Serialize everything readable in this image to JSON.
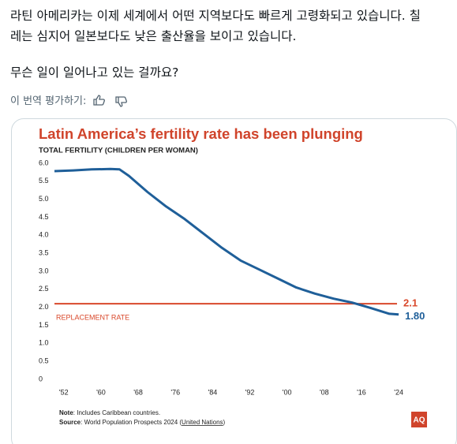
{
  "post": {
    "lines": [
      "라틴 아메리카는 이제 세계에서 어떤 지역보다도 빠르게 고령화되고 있습니다. 칠",
      "레는 심지어 일본보다도 낮은 출산율을 보이고 있습니다.",
      "무슨 일이 일어나고 있는 걸까요?"
    ],
    "rate_translation": "이 번역 평가하기:"
  },
  "chart_data": {
    "type": "line",
    "title": "Latin America’s fertility rate has been plunging",
    "subtitle": "TOTAL FERTILITY (CHILDREN PER WOMAN)",
    "x": [
      1950,
      1954,
      1958,
      1962,
      1964,
      1966,
      1970,
      1974,
      1978,
      1982,
      1986,
      1990,
      1994,
      1998,
      2002,
      2006,
      2010,
      2014,
      2018,
      2022,
      2024
    ],
    "values": [
      5.78,
      5.8,
      5.83,
      5.84,
      5.83,
      5.65,
      5.2,
      4.8,
      4.45,
      4.05,
      3.65,
      3.3,
      3.05,
      2.8,
      2.55,
      2.38,
      2.24,
      2.13,
      1.98,
      1.82,
      1.8
    ],
    "value_labels": [
      null,
      null,
      null,
      null,
      null,
      null,
      null,
      null,
      null,
      null,
      null,
      null,
      null,
      null,
      null,
      null,
      null,
      null,
      null,
      null,
      "1.80"
    ],
    "color": "#1f5f99",
    "reference_line": {
      "value": 2.1,
      "label": "REPLACEMENT RATE",
      "color": "#d9482b"
    },
    "xlim": [
      1950,
      2025
    ],
    "xticks": [
      {
        "value": 1952,
        "label": "'52"
      },
      {
        "value": 1960,
        "label": "'60"
      },
      {
        "value": 1968,
        "label": "'68"
      },
      {
        "value": 1976,
        "label": "'76"
      },
      {
        "value": 1984,
        "label": "'84"
      },
      {
        "value": 1992,
        "label": "'92"
      },
      {
        "value": 2000,
        "label": "'00"
      },
      {
        "value": 2008,
        "label": "'08"
      },
      {
        "value": 2016,
        "label": "'16"
      },
      {
        "value": 2024,
        "label": "'24"
      }
    ],
    "ylim": [
      0,
      6
    ],
    "yticks": [
      0,
      0.5,
      {
        "value": 1,
        "label": "1.0"
      },
      1.5,
      {
        "value": 2,
        "label": "2.0"
      },
      2.5,
      {
        "value": 3,
        "label": "3.0"
      },
      3.5,
      {
        "value": 4,
        "label": "4.0"
      },
      4.5,
      {
        "value": 5,
        "label": "5.0"
      },
      5.5,
      {
        "value": 6,
        "label": "6.0"
      }
    ],
    "grid": false,
    "note_label": "Note",
    "note": ": Includes Caribbean countries.",
    "source_label": "Source",
    "source": ": World Population Prospects 2024 (",
    "source_link": "United Nations",
    "source_end": ")",
    "logo": "AQ"
  }
}
